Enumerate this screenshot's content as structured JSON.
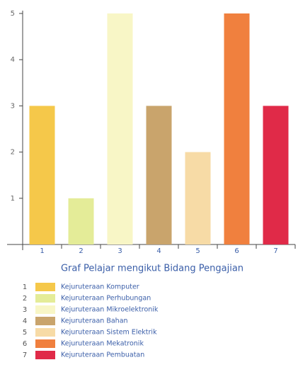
{
  "chart_data": {
    "type": "bar",
    "title": "Graf Pelajar mengikut Bidang Pengajian",
    "categories": [
      "1",
      "2",
      "3",
      "4",
      "5",
      "6",
      "7"
    ],
    "values": [
      3,
      1,
      5,
      3,
      2,
      5,
      3
    ],
    "colors": [
      "#f5c84a",
      "#e4ec98",
      "#f8f6c6",
      "#c9a46c",
      "#f7dba6",
      "#f0803e",
      "#e02a48"
    ],
    "legend_labels": [
      "Kejuruteraan Komputer",
      "Kejuruteraan Perhubungan",
      "Kejuruteraan Mikroelektronik",
      "Kejuruteraan Bahan",
      "Kejuruteraan Sistem Elektrik",
      "Kejuruteraan Mekatronik",
      "Kejuruteraan Pembuatan"
    ],
    "ylim": [
      0,
      5
    ],
    "yticks": [
      1,
      2,
      3,
      4,
      5
    ]
  }
}
